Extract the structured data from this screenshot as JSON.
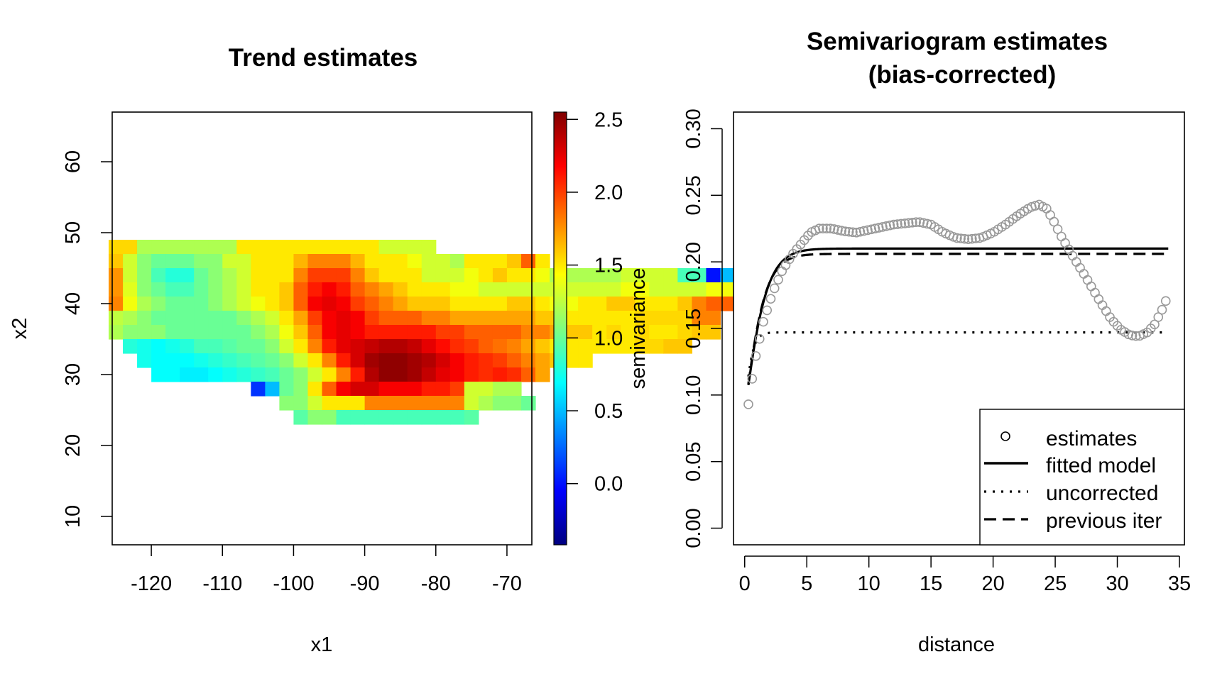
{
  "chart_data": [
    {
      "type": "heatmap",
      "title": "Trend estimates",
      "xlabel": "x1",
      "ylabel": "x2",
      "xlim": [
        -125.5,
        -66.5
      ],
      "ylim": [
        6,
        67
      ],
      "x_ticks": [
        "-120",
        "-110",
        "-100",
        "-90",
        "-80",
        "-70"
      ],
      "y_ticks": [
        "10",
        "20",
        "30",
        "40",
        "50",
        "60"
      ],
      "colorbar": {
        "label": "semivariance",
        "range": [
          -0.42,
          2.55
        ],
        "ticks": [
          "0.0",
          "0.5",
          "1.0",
          "1.5",
          "2.0",
          "2.5"
        ],
        "palette": [
          "#00007F",
          "#0000FF",
          "#007FFF",
          "#00FFFF",
          "#7FFF7F",
          "#FFFF00",
          "#FF7F00",
          "#FF0000",
          "#7F0000"
        ]
      },
      "cell_size": 2,
      "rows": [
        {
          "y": 48,
          "x0": -125,
          "values": [
            1.55,
            1.55,
            1.2,
            1.2,
            1.2,
            1.2,
            1.2,
            1.2,
            1.2,
            1.5,
            1.5,
            1.5,
            1.5,
            1.5,
            1.5,
            1.5,
            1.5,
            1.5,
            1.5,
            1.3,
            1.3,
            1.3,
            1.3
          ]
        },
        {
          "y": 46,
          "x0": -125,
          "values": [
            1.6,
            1.3,
            1.1,
            1.0,
            1.0,
            1.0,
            1.1,
            1.1,
            1.3,
            1.3,
            1.5,
            1.5,
            1.5,
            1.65,
            1.8,
            1.8,
            1.8,
            1.65,
            1.5,
            1.5,
            1.5,
            1.4,
            1.3,
            1.3,
            1.2,
            1.5,
            1.5,
            1.5,
            1.6,
            1.9,
            1.5
          ]
        },
        {
          "y": 44,
          "x0": -125,
          "values": [
            1.75,
            1.3,
            1.1,
            0.9,
            0.8,
            0.8,
            1.0,
            1.1,
            1.2,
            1.3,
            1.5,
            1.5,
            1.5,
            1.8,
            2.0,
            2.0,
            2.0,
            1.8,
            1.6,
            1.5,
            1.5,
            1.5,
            1.3,
            1.3,
            1.3,
            1.4,
            1.5,
            1.6,
            1.5,
            1.5,
            1.4,
            1.2,
            1.2,
            1.2,
            1.2,
            1.2,
            1.3,
            1.3,
            1.3,
            1.3,
            0.9,
            0.9,
            0.0,
            0.5,
            0.7,
            0.85,
            0.85
          ]
        },
        {
          "y": 42,
          "x0": -125,
          "values": [
            1.75,
            1.35,
            1.1,
            1.0,
            0.9,
            0.9,
            1.0,
            1.1,
            1.2,
            1.3,
            1.5,
            1.5,
            1.6,
            1.9,
            2.1,
            2.2,
            2.1,
            1.9,
            1.8,
            1.7,
            1.6,
            1.5,
            1.5,
            1.5,
            1.4,
            1.4,
            1.3,
            1.3,
            1.3,
            1.3,
            1.3,
            1.3,
            1.3,
            1.3,
            1.3,
            1.3,
            1.4,
            1.4,
            1.3,
            1.3,
            1.3,
            1.3,
            1.4,
            1.4,
            1.4,
            1.4,
            1.4
          ]
        },
        {
          "y": 40,
          "x0": -125,
          "values": [
            1.8,
            1.4,
            1.2,
            1.1,
            1.0,
            1.0,
            1.0,
            1.1,
            1.2,
            1.3,
            1.4,
            1.5,
            1.6,
            1.9,
            2.2,
            2.25,
            2.2,
            2.0,
            1.9,
            1.8,
            1.7,
            1.6,
            1.6,
            1.6,
            1.5,
            1.5,
            1.5,
            1.5,
            1.6,
            1.6,
            1.5,
            1.4,
            1.4,
            1.5,
            1.5,
            1.6,
            1.6,
            1.5,
            1.5,
            1.5,
            1.6,
            1.8,
            1.9,
            1.9
          ]
        },
        {
          "y": 38,
          "x0": -125,
          "values": [
            1.25,
            1.2,
            1.1,
            1.0,
            1.0,
            1.0,
            1.0,
            1.0,
            1.0,
            1.1,
            1.2,
            1.3,
            1.5,
            1.7,
            2.0,
            2.2,
            2.25,
            2.2,
            2.0,
            1.9,
            1.9,
            1.9,
            1.8,
            1.8,
            1.7,
            1.7,
            1.7,
            1.7,
            1.7,
            1.7,
            1.6,
            1.6,
            1.5,
            1.5,
            1.5,
            1.5,
            1.5,
            1.55,
            1.55,
            1.55,
            1.55,
            1.8,
            1.8
          ]
        },
        {
          "y": 36,
          "x0": -125,
          "values": [
            1.2,
            1.1,
            1.1,
            1.1,
            1.0,
            1.0,
            1.0,
            1.0,
            1.0,
            1.0,
            1.1,
            1.2,
            1.4,
            1.6,
            1.9,
            2.2,
            2.25,
            2.2,
            2.1,
            2.1,
            2.1,
            2.1,
            2.1,
            2.0,
            2.0,
            1.9,
            1.9,
            1.9,
            1.9,
            1.8,
            1.8,
            1.7,
            1.6,
            1.6,
            1.5,
            1.55,
            1.5,
            1.55,
            1.5,
            1.5,
            1.55,
            1.6,
            1.6
          ]
        },
        {
          "y": 34,
          "x0": -123,
          "values": [
            0.8,
            0.75,
            0.7,
            0.75,
            0.8,
            0.9,
            0.9,
            0.95,
            1.0,
            1.0,
            1.1,
            1.3,
            1.5,
            1.8,
            2.1,
            2.25,
            2.3,
            2.35,
            2.4,
            2.4,
            2.35,
            2.25,
            2.15,
            2.05,
            2.0,
            1.9,
            1.85,
            1.8,
            1.7,
            1.6,
            1.5,
            1.5,
            1.5,
            1.5,
            1.5,
            1.5,
            1.55,
            1.55,
            1.6,
            1.6
          ]
        },
        {
          "y": 32,
          "x0": -121,
          "values": [
            0.75,
            0.7,
            0.7,
            0.7,
            0.75,
            0.8,
            0.85,
            0.9,
            0.95,
            1.0,
            1.1,
            1.3,
            1.5,
            1.8,
            2.1,
            2.3,
            2.45,
            2.5,
            2.5,
            2.45,
            2.4,
            2.3,
            2.2,
            2.1,
            2.05,
            2.0,
            1.9,
            1.8,
            1.7,
            1.6,
            1.5,
            1.5
          ]
        },
        {
          "y": 30,
          "x0": -119,
          "values": [
            0.7,
            0.7,
            0.65,
            0.65,
            0.7,
            0.75,
            0.8,
            0.85,
            0.9,
            1.0,
            1.1,
            1.3,
            1.5,
            1.8,
            2.1,
            2.4,
            2.5,
            2.5,
            2.45,
            2.35,
            2.25,
            2.2,
            2.1,
            2.05,
            2.1,
            2.05,
            1.9,
            1.7
          ]
        },
        {
          "y": 28,
          "x0": -105,
          "values": [
            0.1,
            0.5,
            1.0,
            1.1,
            1.5,
            1.9,
            2.2,
            2.3,
            2.3,
            2.2,
            2.2,
            2.2,
            2.1,
            2.1,
            2.0,
            1.3,
            1.3,
            1.2,
            1.2
          ]
        },
        {
          "y": 26,
          "x0": -101,
          "values": [
            1.1,
            1.1,
            1.3,
            1.5,
            1.5,
            1.5,
            1.8,
            1.8,
            1.8,
            1.8,
            1.8,
            1.8,
            1.8,
            1.3,
            1.2,
            1.1,
            1.1,
            1.0
          ]
        },
        {
          "y": 24,
          "x0": -99,
          "values": [
            0.95,
            1.1,
            1.1,
            0.9,
            0.9,
            0.9,
            0.9,
            0.9,
            0.9,
            0.9,
            0.9,
            0.9,
            0.95
          ]
        }
      ]
    },
    {
      "type": "scatter",
      "title_lines": [
        "Semivariogram estimates",
        "(bias-corrected)"
      ],
      "xlabel": "distance",
      "ylabel": "",
      "xlim": [
        -0.9,
        35.4
      ],
      "ylim": [
        -0.0125,
        0.3125
      ],
      "x_ticks": [
        0,
        5,
        10,
        15,
        20,
        25,
        30,
        35
      ],
      "y_ticks": [
        "0.00",
        "0.05",
        "0.10",
        "0.15",
        "0.20",
        "0.25",
        "0.30"
      ],
      "colors": {
        "estimates": "#999999",
        "lines": "#000000"
      },
      "estimates_profile": [
        [
          0.3,
          0.093
        ],
        [
          0.8,
          0.125
        ],
        [
          1.5,
          0.155
        ],
        [
          2.3,
          0.178
        ],
        [
          3.0,
          0.193
        ],
        [
          3.8,
          0.205
        ],
        [
          4.5,
          0.213
        ],
        [
          5.3,
          0.222
        ],
        [
          6.0,
          0.225
        ],
        [
          7.0,
          0.225
        ],
        [
          8.0,
          0.223
        ],
        [
          9.0,
          0.222
        ],
        [
          10.0,
          0.224
        ],
        [
          11.0,
          0.226
        ],
        [
          12.0,
          0.228
        ],
        [
          13.0,
          0.229
        ],
        [
          14.0,
          0.23
        ],
        [
          15.0,
          0.228
        ],
        [
          16.0,
          0.222
        ],
        [
          17.0,
          0.218
        ],
        [
          18.0,
          0.217
        ],
        [
          19.0,
          0.218
        ],
        [
          20.0,
          0.222
        ],
        [
          21.0,
          0.228
        ],
        [
          22.0,
          0.235
        ],
        [
          23.0,
          0.241
        ],
        [
          23.7,
          0.243
        ],
        [
          24.3,
          0.24
        ],
        [
          24.8,
          0.232
        ],
        [
          25.5,
          0.219
        ],
        [
          26.5,
          0.203
        ],
        [
          27.5,
          0.188
        ],
        [
          28.5,
          0.172
        ],
        [
          29.5,
          0.157
        ],
        [
          30.3,
          0.149
        ],
        [
          31.0,
          0.145
        ],
        [
          31.7,
          0.144
        ],
        [
          32.4,
          0.147
        ],
        [
          33.0,
          0.153
        ],
        [
          33.6,
          0.164
        ],
        [
          34.1,
          0.175
        ]
      ],
      "estimates_spacing": 0.3,
      "series": [
        {
          "name": "fitted model",
          "style": "solid",
          "model": "stable",
          "nugget": 0.09,
          "sill": 0.21,
          "range": 1.4
        },
        {
          "name": "uncorrected",
          "style": "dotted",
          "model": "stable",
          "nugget": 0.09,
          "sill": 0.147,
          "range": 0.5
        },
        {
          "name": "previous iter",
          "style": "dashed",
          "model": "stable",
          "nugget": 0.09,
          "sill": 0.206,
          "range": 1.3
        }
      ],
      "legend": {
        "position": "bottom-right",
        "entries": [
          "estimates",
          "fitted model",
          "uncorrected",
          "previous iter"
        ]
      }
    }
  ]
}
